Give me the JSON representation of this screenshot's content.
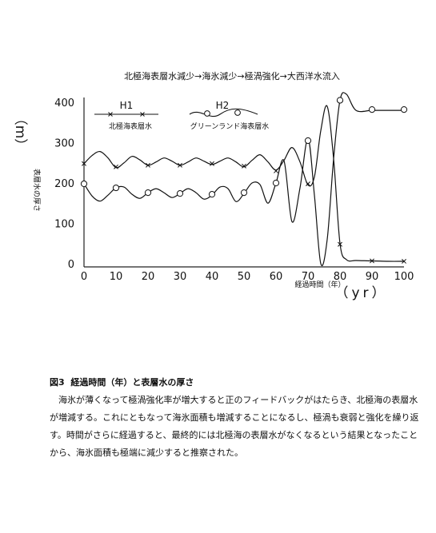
{
  "chart_data": {
    "type": "line",
    "title": "北極海表層水減少→海氷減少→極渦強化→大西洋水流入",
    "xlabel": "経過時間（年）",
    "xunit": "（yr）",
    "ylabel": "表層水の厚さ",
    "yunit": "（m）",
    "xlim": [
      0,
      100
    ],
    "ylim": [
      0,
      400
    ],
    "x_ticks": [
      "0",
      "10",
      "20",
      "30",
      "40",
      "50",
      "60",
      "70",
      "80",
      "90",
      "100"
    ],
    "y_ticks": [
      "0",
      "100",
      "200",
      "300",
      "400"
    ],
    "grid": false,
    "legend_position": "top-left",
    "series": [
      {
        "name": "H1",
        "description": "北極海表層水",
        "marker": "x",
        "x": [
          0,
          2.5,
          5,
          7.5,
          10,
          12.5,
          15,
          17.5,
          20,
          22.5,
          25,
          27.5,
          30,
          32.5,
          35,
          37.5,
          40,
          42.5,
          45,
          47.5,
          50,
          52.5,
          55,
          57.5,
          60,
          62.5,
          65,
          67.5,
          70,
          72,
          74,
          76,
          78,
          80,
          82,
          85,
          90,
          95,
          100
        ],
        "values": [
          248,
          268,
          278,
          262,
          238,
          250,
          266,
          257,
          244,
          252,
          262,
          254,
          244,
          252,
          262,
          254,
          246,
          254,
          262,
          252,
          240,
          256,
          270,
          252,
          232,
          256,
          288,
          252,
          195,
          215,
          330,
          390,
          260,
          50,
          10,
          8,
          7,
          6,
          6
        ],
        "markers_x": [
          0,
          10,
          20,
          30,
          40,
          50,
          60,
          70,
          80,
          90,
          100
        ],
        "markers_y": [
          248,
          240,
          244,
          244,
          248,
          242,
          230,
          198,
          48,
          7,
          6
        ]
      },
      {
        "name": "H2",
        "description": "グリーンランド海表層水",
        "marker": "o",
        "x": [
          0,
          2.5,
          5,
          7.5,
          10,
          12.5,
          15,
          17.5,
          20,
          22.5,
          25,
          27.5,
          30,
          32.5,
          35,
          37.5,
          40,
          42.5,
          45,
          47.5,
          50,
          52.5,
          55,
          57.5,
          60,
          62.5,
          65,
          67.5,
          70,
          72,
          74,
          76,
          78,
          80,
          82,
          85,
          90,
          95,
          100
        ],
        "values": [
          198,
          168,
          155,
          170,
          188,
          190,
          172,
          162,
          176,
          186,
          176,
          164,
          174,
          186,
          176,
          160,
          170,
          190,
          186,
          154,
          174,
          200,
          196,
          150,
          200,
          255,
          104,
          188,
          310,
          170,
          0,
          60,
          260,
          405,
          420,
          380,
          380,
          380,
          380
        ],
        "markers_x": [
          0,
          10,
          20,
          30,
          40,
          50,
          60,
          70,
          80,
          90,
          100
        ],
        "markers_y": [
          198,
          188,
          176,
          174,
          172,
          176,
          200,
          305,
          405,
          382,
          382
        ]
      }
    ]
  },
  "caption": {
    "figure_label": "図3",
    "title": "経過時間（年）と表層水の厚さ"
  },
  "body_text": "海氷が薄くなって極渦強化率が増大すると正のフィードバックがはたらき、北極海の表層水が増減する。これにともなって海氷面積も増減することになるし、極渦も衰弱と強化を繰り返す。時間がさらに経過すると、最終的には北極海の表層水がなくなるという結果となったことから、海氷面積も極端に減少すると推察された。"
}
